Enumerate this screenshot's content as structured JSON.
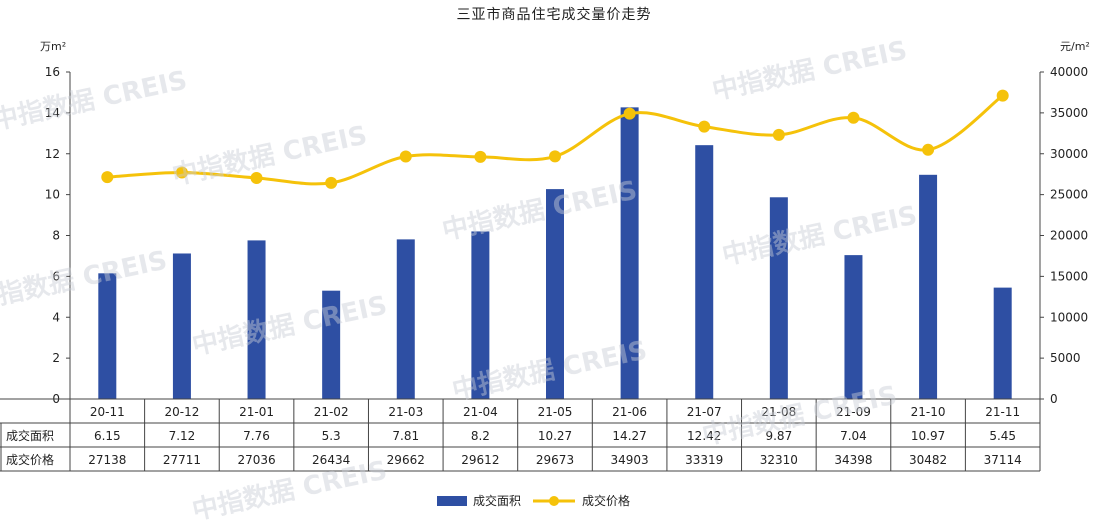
{
  "watermark": "中指数据 CREIS",
  "chart_data": {
    "type": "bar",
    "title": "三亚市商品住宅成交量价走势",
    "categories": [
      "20-11",
      "20-12",
      "21-01",
      "21-02",
      "21-03",
      "21-04",
      "21-05",
      "21-06",
      "21-07",
      "21-08",
      "21-09",
      "21-10",
      "21-11"
    ],
    "left_axis": {
      "unit": "万m²",
      "ylim": [
        0,
        16
      ],
      "ticks": [
        "0",
        "2",
        "4",
        "6",
        "8",
        "10",
        "12",
        "14",
        "16"
      ]
    },
    "right_axis": {
      "unit": "元/m²",
      "ylim": [
        0,
        40000
      ],
      "ticks": [
        "0",
        "5000",
        "10000",
        "15000",
        "20000",
        "25000",
        "30000",
        "35000",
        "40000"
      ]
    },
    "series": [
      {
        "name": "成交面积",
        "type": "bar",
        "axis": "left",
        "color": "#2e4fa3",
        "values": [
          6.15,
          7.12,
          7.76,
          5.3,
          7.81,
          8.2,
          10.27,
          14.27,
          12.42,
          9.87,
          7.04,
          10.97,
          5.45
        ],
        "labels": [
          "6.15",
          "7.12",
          "7.76",
          "5.3",
          "7.81",
          "8.2",
          "10.27",
          "14.27",
          "12.42",
          "9.87",
          "7.04",
          "10.97",
          "5.45"
        ]
      },
      {
        "name": "成交价格",
        "type": "line",
        "axis": "right",
        "color": "#f5c20a",
        "values": [
          27138,
          27711,
          27036,
          26434,
          29662,
          29612,
          29673,
          34903,
          33319,
          32310,
          34398,
          30482,
          37114
        ],
        "labels": [
          "27138",
          "27711",
          "27036",
          "26434",
          "29662",
          "29612",
          "29673",
          "34903",
          "33319",
          "32310",
          "34398",
          "30482",
          "37114"
        ]
      }
    ],
    "legend_position": "bottom-center",
    "grid": false
  }
}
